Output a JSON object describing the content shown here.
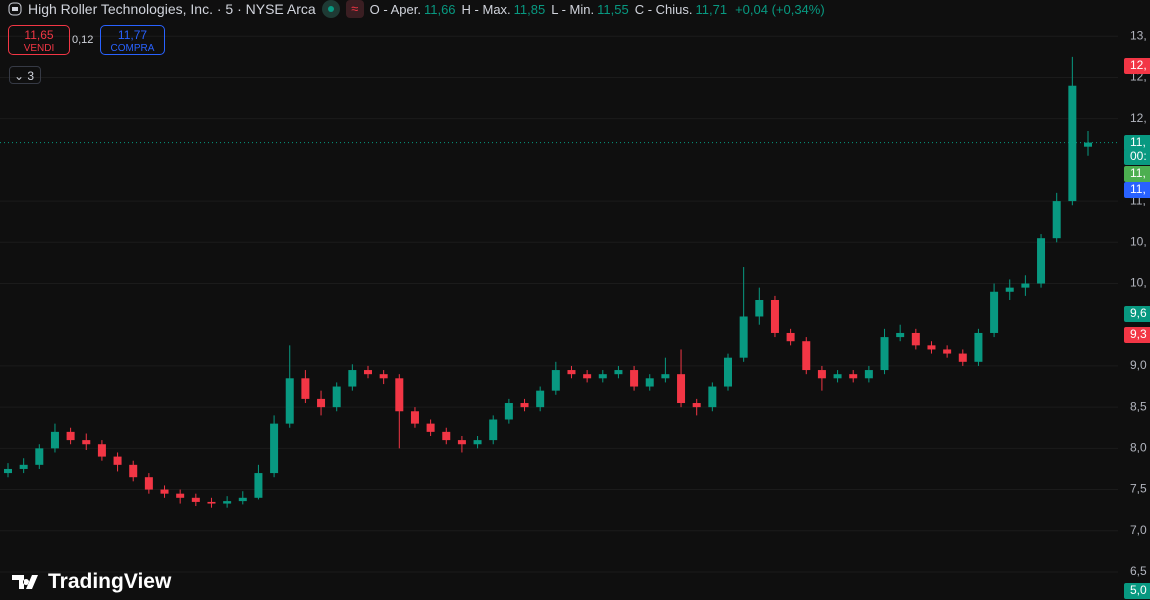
{
  "header": {
    "symbol": "High Roller Technologies, Inc. · 5 · NYSE Arca",
    "open_label": "O - Aper.",
    "open": "11,66",
    "high_label": "H - Max.",
    "high": "11,85",
    "low_label": "L - Min.",
    "low": "11,55",
    "close_label": "C - Chius.",
    "close": "11,71",
    "change": "+0,04 (+0,34%)"
  },
  "trade": {
    "sell_price": "11,65",
    "sell_label": "VENDI",
    "spread": "0,12",
    "buy_price": "11,77",
    "buy_label": "COMPRA"
  },
  "indicators_count": "3",
  "logo": "TradingView",
  "price_badges": [
    {
      "text": "12,",
      "color": "#f23645"
    },
    {
      "text": "11,",
      "color": "#089981"
    },
    {
      "text": "00:",
      "color": "#089981"
    },
    {
      "text": "11,",
      "color": "#4caf50"
    },
    {
      "text": "11,",
      "color": "#2962ff"
    },
    {
      "text": "9,6",
      "color": "#089981"
    },
    {
      "text": "9,3",
      "color": "#f23645"
    },
    {
      "text": "5,0",
      "color": "#089981"
    }
  ],
  "chart_data": {
    "type": "candlestick",
    "up_color": "#089981",
    "down_color": "#f23645",
    "ylim": [
      6.16,
      13.44
    ],
    "yticks": [
      {
        "value": 13,
        "label": "13,"
      },
      {
        "value": 12.5,
        "label": "12,"
      },
      {
        "value": 12,
        "label": "12,"
      },
      {
        "value": 11,
        "label": "11,"
      },
      {
        "value": 10.5,
        "label": "10,"
      },
      {
        "value": 10,
        "label": "10,"
      },
      {
        "value": 9,
        "label": "9,0"
      },
      {
        "value": 8.5,
        "label": "8,5"
      },
      {
        "value": 8,
        "label": "8,0"
      },
      {
        "value": 7.5,
        "label": "7,5"
      },
      {
        "value": 7,
        "label": "7,0"
      },
      {
        "value": 6.5,
        "label": "6,5"
      }
    ],
    "last_price": 11.71,
    "ohlc": [
      [
        7.7,
        7.82,
        7.65,
        7.75
      ],
      [
        7.75,
        7.88,
        7.7,
        7.8
      ],
      [
        7.8,
        8.05,
        7.75,
        8.0
      ],
      [
        8.0,
        8.3,
        7.95,
        8.2
      ],
      [
        8.2,
        8.25,
        8.05,
        8.1
      ],
      [
        8.1,
        8.18,
        7.98,
        8.05
      ],
      [
        8.05,
        8.1,
        7.85,
        7.9
      ],
      [
        7.9,
        7.95,
        7.72,
        7.8
      ],
      [
        7.8,
        7.85,
        7.6,
        7.65
      ],
      [
        7.65,
        7.7,
        7.45,
        7.5
      ],
      [
        7.5,
        7.55,
        7.4,
        7.45
      ],
      [
        7.45,
        7.5,
        7.33,
        7.4
      ],
      [
        7.4,
        7.45,
        7.3,
        7.35
      ],
      [
        7.35,
        7.4,
        7.28,
        7.33
      ],
      [
        7.33,
        7.42,
        7.28,
        7.36
      ],
      [
        7.36,
        7.48,
        7.32,
        7.4
      ],
      [
        7.4,
        7.8,
        7.38,
        7.7
      ],
      [
        7.7,
        8.4,
        7.65,
        8.3
      ],
      [
        8.3,
        9.25,
        8.25,
        8.85
      ],
      [
        8.85,
        8.95,
        8.55,
        8.6
      ],
      [
        8.6,
        8.7,
        8.4,
        8.5
      ],
      [
        8.5,
        8.8,
        8.45,
        8.75
      ],
      [
        8.75,
        9.02,
        8.7,
        8.95
      ],
      [
        8.95,
        9.0,
        8.85,
        8.9
      ],
      [
        8.9,
        8.95,
        8.78,
        8.85
      ],
      [
        8.85,
        8.9,
        8.0,
        8.45
      ],
      [
        8.45,
        8.5,
        8.25,
        8.3
      ],
      [
        8.3,
        8.35,
        8.15,
        8.2
      ],
      [
        8.2,
        8.25,
        8.05,
        8.1
      ],
      [
        8.1,
        8.15,
        7.95,
        8.05
      ],
      [
        8.05,
        8.15,
        8.0,
        8.1
      ],
      [
        8.1,
        8.4,
        8.05,
        8.35
      ],
      [
        8.35,
        8.6,
        8.3,
        8.55
      ],
      [
        8.55,
        8.6,
        8.45,
        8.5
      ],
      [
        8.5,
        8.75,
        8.45,
        8.7
      ],
      [
        8.7,
        9.05,
        8.65,
        8.95
      ],
      [
        8.95,
        9.0,
        8.85,
        8.9
      ],
      [
        8.9,
        8.95,
        8.8,
        8.85
      ],
      [
        8.85,
        8.95,
        8.8,
        8.9
      ],
      [
        8.9,
        9.0,
        8.85,
        8.95
      ],
      [
        8.95,
        9.0,
        8.7,
        8.75
      ],
      [
        8.75,
        8.9,
        8.7,
        8.85
      ],
      [
        8.85,
        9.1,
        8.8,
        8.9
      ],
      [
        8.9,
        9.2,
        8.5,
        8.55
      ],
      [
        8.55,
        8.6,
        8.4,
        8.5
      ],
      [
        8.5,
        8.8,
        8.45,
        8.75
      ],
      [
        8.75,
        9.15,
        8.7,
        9.1
      ],
      [
        9.1,
        10.2,
        9.05,
        9.6
      ],
      [
        9.6,
        9.95,
        9.5,
        9.8
      ],
      [
        9.8,
        9.85,
        9.35,
        9.4
      ],
      [
        9.4,
        9.45,
        9.25,
        9.3
      ],
      [
        9.3,
        9.35,
        8.9,
        8.95
      ],
      [
        8.95,
        9.0,
        8.7,
        8.85
      ],
      [
        8.85,
        8.95,
        8.8,
        8.9
      ],
      [
        8.9,
        8.95,
        8.8,
        8.85
      ],
      [
        8.85,
        9.0,
        8.8,
        8.95
      ],
      [
        8.95,
        9.45,
        8.9,
        9.35
      ],
      [
        9.35,
        9.5,
        9.3,
        9.4
      ],
      [
        9.4,
        9.45,
        9.2,
        9.25
      ],
      [
        9.25,
        9.3,
        9.15,
        9.2
      ],
      [
        9.2,
        9.25,
        9.1,
        9.15
      ],
      [
        9.15,
        9.2,
        9.0,
        9.05
      ],
      [
        9.05,
        9.45,
        9.0,
        9.4
      ],
      [
        9.4,
        10.0,
        9.35,
        9.9
      ],
      [
        9.9,
        10.05,
        9.8,
        9.95
      ],
      [
        9.95,
        10.1,
        9.85,
        10.0
      ],
      [
        10.0,
        10.6,
        9.95,
        10.55
      ],
      [
        10.55,
        11.1,
        10.5,
        11.0
      ],
      [
        11.0,
        12.75,
        10.95,
        12.4
      ],
      [
        11.66,
        11.85,
        11.55,
        11.71
      ]
    ]
  }
}
